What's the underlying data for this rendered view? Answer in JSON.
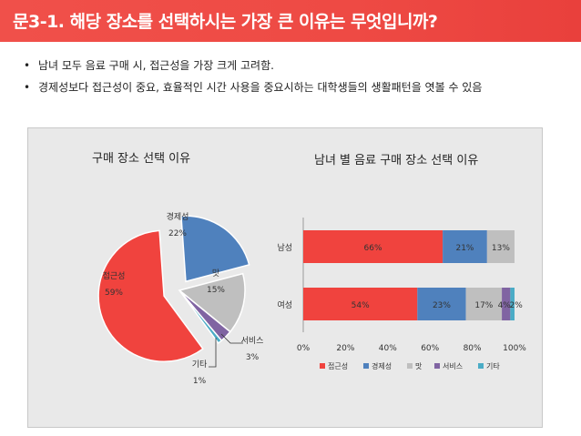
{
  "header": {
    "title": "문3-1. 해당 장소를 선택하시는 가장 큰 이유는 무엇입니까?"
  },
  "bullets": [
    {
      "marker": "•",
      "text": "남녀 모두 음료 구매 시, 접근성을 가장 크게 고려함."
    },
    {
      "marker": "•",
      "text": "경제성보다 접근성이 중요, 효율적인 시간 사용을 중요시하는 대학생들의 생활패턴을 엿볼 수 있음"
    }
  ],
  "chart_data": [
    {
      "type": "pie",
      "title": "구매 장소 선택 이유",
      "labels": [
        "접근성",
        "경제성",
        "맛",
        "서비스",
        "기타"
      ],
      "values": [
        59,
        22,
        15,
        3,
        1
      ],
      "display": [
        "59%",
        "22%",
        "15%",
        "3%",
        "1%"
      ],
      "colors": [
        "#f0433e",
        "#4f81bd",
        "#bfbfbf",
        "#8064a2",
        "#4bacc6"
      ],
      "exploded": [
        "접근성",
        "경제성"
      ]
    },
    {
      "type": "bar",
      "orientation": "horizontal",
      "stacked": true,
      "title": "남녀 별 음료 구매 장소 선택 이유",
      "categories": [
        "남성",
        "여성"
      ],
      "series": [
        {
          "name": "접근성",
          "color": "#f0433e",
          "values": [
            66,
            54
          ]
        },
        {
          "name": "경제성",
          "color": "#4f81bd",
          "values": [
            21,
            23
          ]
        },
        {
          "name": "맛",
          "color": "#bfbfbf",
          "values": [
            13,
            17
          ]
        },
        {
          "name": "서비스",
          "color": "#8064a2",
          "values": [
            0,
            4
          ]
        },
        {
          "name": "기타",
          "color": "#4bacc6",
          "values": [
            0,
            2
          ]
        }
      ],
      "xlim": [
        0,
        100
      ],
      "xticks": [
        "0%",
        "20%",
        "40%",
        "60%",
        "80%",
        "100%"
      ],
      "legend": "bottom"
    }
  ]
}
